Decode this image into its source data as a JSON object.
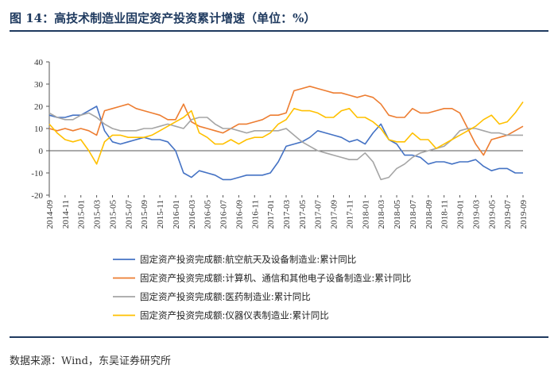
{
  "figure": {
    "title": "图 14：高技术制造业固定资产投资累计增速（单位：%）",
    "source": "数据来源：Wind，东吴证券研究所"
  },
  "chart_data": {
    "type": "line",
    "ylim": [
      -20,
      40
    ],
    "yticks": [
      40,
      30,
      20,
      10,
      0,
      -10,
      -20
    ],
    "x": [
      "2014-09",
      "2014-10",
      "2014-11",
      "2014-12",
      "2015-01",
      "2015-02",
      "2015-03",
      "2015-04",
      "2015-05",
      "2015-06",
      "2015-07",
      "2015-08",
      "2015-09",
      "2015-10",
      "2015-11",
      "2015-12",
      "2016-01",
      "2016-02",
      "2016-03",
      "2016-04",
      "2016-05",
      "2016-06",
      "2016-07",
      "2016-08",
      "2016-09",
      "2016-10",
      "2016-11",
      "2016-12",
      "2017-01",
      "2017-02",
      "2017-03",
      "2017-04",
      "2017-05",
      "2017-06",
      "2017-07",
      "2017-08",
      "2017-09",
      "2017-10",
      "2017-11",
      "2017-12",
      "2018-01",
      "2018-02",
      "2018-03",
      "2018-04",
      "2018-05",
      "2018-06",
      "2018-07",
      "2018-08",
      "2018-09",
      "2018-10",
      "2018-11",
      "2018-12",
      "2019-01",
      "2019-02",
      "2019-03",
      "2019-04",
      "2019-05",
      "2019-06",
      "2019-07",
      "2019-08",
      "2019-09"
    ],
    "xticks": [
      "2014-09",
      "2014-11",
      "2015-01",
      "2015-03",
      "2015-05",
      "2015-07",
      "2015-09",
      "2015-11",
      "2016-01",
      "2016-03",
      "2016-05",
      "2016-07",
      "2016-09",
      "2016-11",
      "2017-01",
      "2017-03",
      "2017-05",
      "2017-07",
      "2017-09",
      "2017-11",
      "2018-01",
      "2018-03",
      "2018-05",
      "2018-07",
      "2018-09",
      "2018-11",
      "2019-01",
      "2019-03",
      "2019-05",
      "2019-07",
      "2019-09"
    ],
    "grid": false,
    "legend_position": "bottom",
    "series": [
      {
        "name": "固定资产投资完成额:航空航天及设备制造业:累计同比",
        "color": "#4472C4",
        "values": [
          16,
          15,
          15,
          16,
          16,
          18,
          20,
          9,
          4,
          3,
          4,
          5,
          6,
          5,
          5,
          4,
          0,
          -10,
          -12,
          -9,
          -10,
          -11,
          -13,
          -13,
          -12,
          -11,
          -11,
          -11,
          -10,
          -5,
          2,
          3,
          4,
          6,
          9,
          8,
          7,
          6,
          4,
          5,
          3,
          8,
          12,
          5,
          3,
          -2,
          -2,
          -3,
          -6,
          -5,
          -5,
          -6,
          -5,
          -5,
          -4,
          -7,
          -9,
          -8,
          -8,
          -10,
          -10
        ]
      },
      {
        "name": "固定资产投资完成额:计算机、通信和其他电子设备制造业:累计同比",
        "color": "#ED7D31",
        "values": [
          10,
          9,
          10,
          9,
          10,
          9,
          7,
          18,
          19,
          20,
          21,
          19,
          18,
          17,
          16,
          14,
          14,
          21,
          13,
          11,
          10,
          9,
          8,
          10,
          12,
          12,
          13,
          14,
          16,
          16,
          17,
          27,
          28,
          29,
          28,
          27,
          26,
          26,
          25,
          24,
          25,
          24,
          21,
          16,
          15,
          15,
          19,
          17,
          17,
          18,
          19,
          19,
          17,
          10,
          3,
          -2,
          5,
          6,
          7,
          9,
          11
        ]
      },
      {
        "name": "固定资产投资完成额:医药制造业:累计同比",
        "color": "#A5A5A5",
        "values": [
          17,
          15,
          14,
          14,
          16,
          17,
          15,
          12,
          10,
          9,
          9,
          9,
          10,
          10,
          11,
          12,
          11,
          10,
          14,
          15,
          15,
          12,
          10,
          10,
          9,
          8,
          9,
          9,
          9,
          9,
          10,
          7,
          4,
          2,
          0,
          -1,
          -2,
          -3,
          -4,
          -4,
          -1,
          -5,
          -13,
          -12,
          -8,
          -6,
          -3,
          -1,
          0,
          1,
          2,
          5,
          9,
          10,
          10,
          9,
          8,
          8,
          7,
          7,
          7
        ]
      },
      {
        "name": "固定资产投资完成额:仪器仪表制造业:累计同比",
        "color": "#FFC000",
        "values": [
          12,
          8,
          5,
          4,
          5,
          0,
          -6,
          4,
          7,
          7,
          6,
          6,
          6,
          7,
          9,
          11,
          13,
          15,
          18,
          8,
          6,
          3,
          3,
          5,
          3,
          5,
          6,
          6,
          8,
          12,
          14,
          19,
          18,
          18,
          17,
          15,
          15,
          18,
          19,
          15,
          15,
          13,
          10,
          5,
          4,
          4,
          8,
          5,
          5,
          1,
          3,
          5,
          7,
          9,
          11,
          14,
          16,
          12,
          13,
          17,
          22
        ]
      }
    ]
  }
}
